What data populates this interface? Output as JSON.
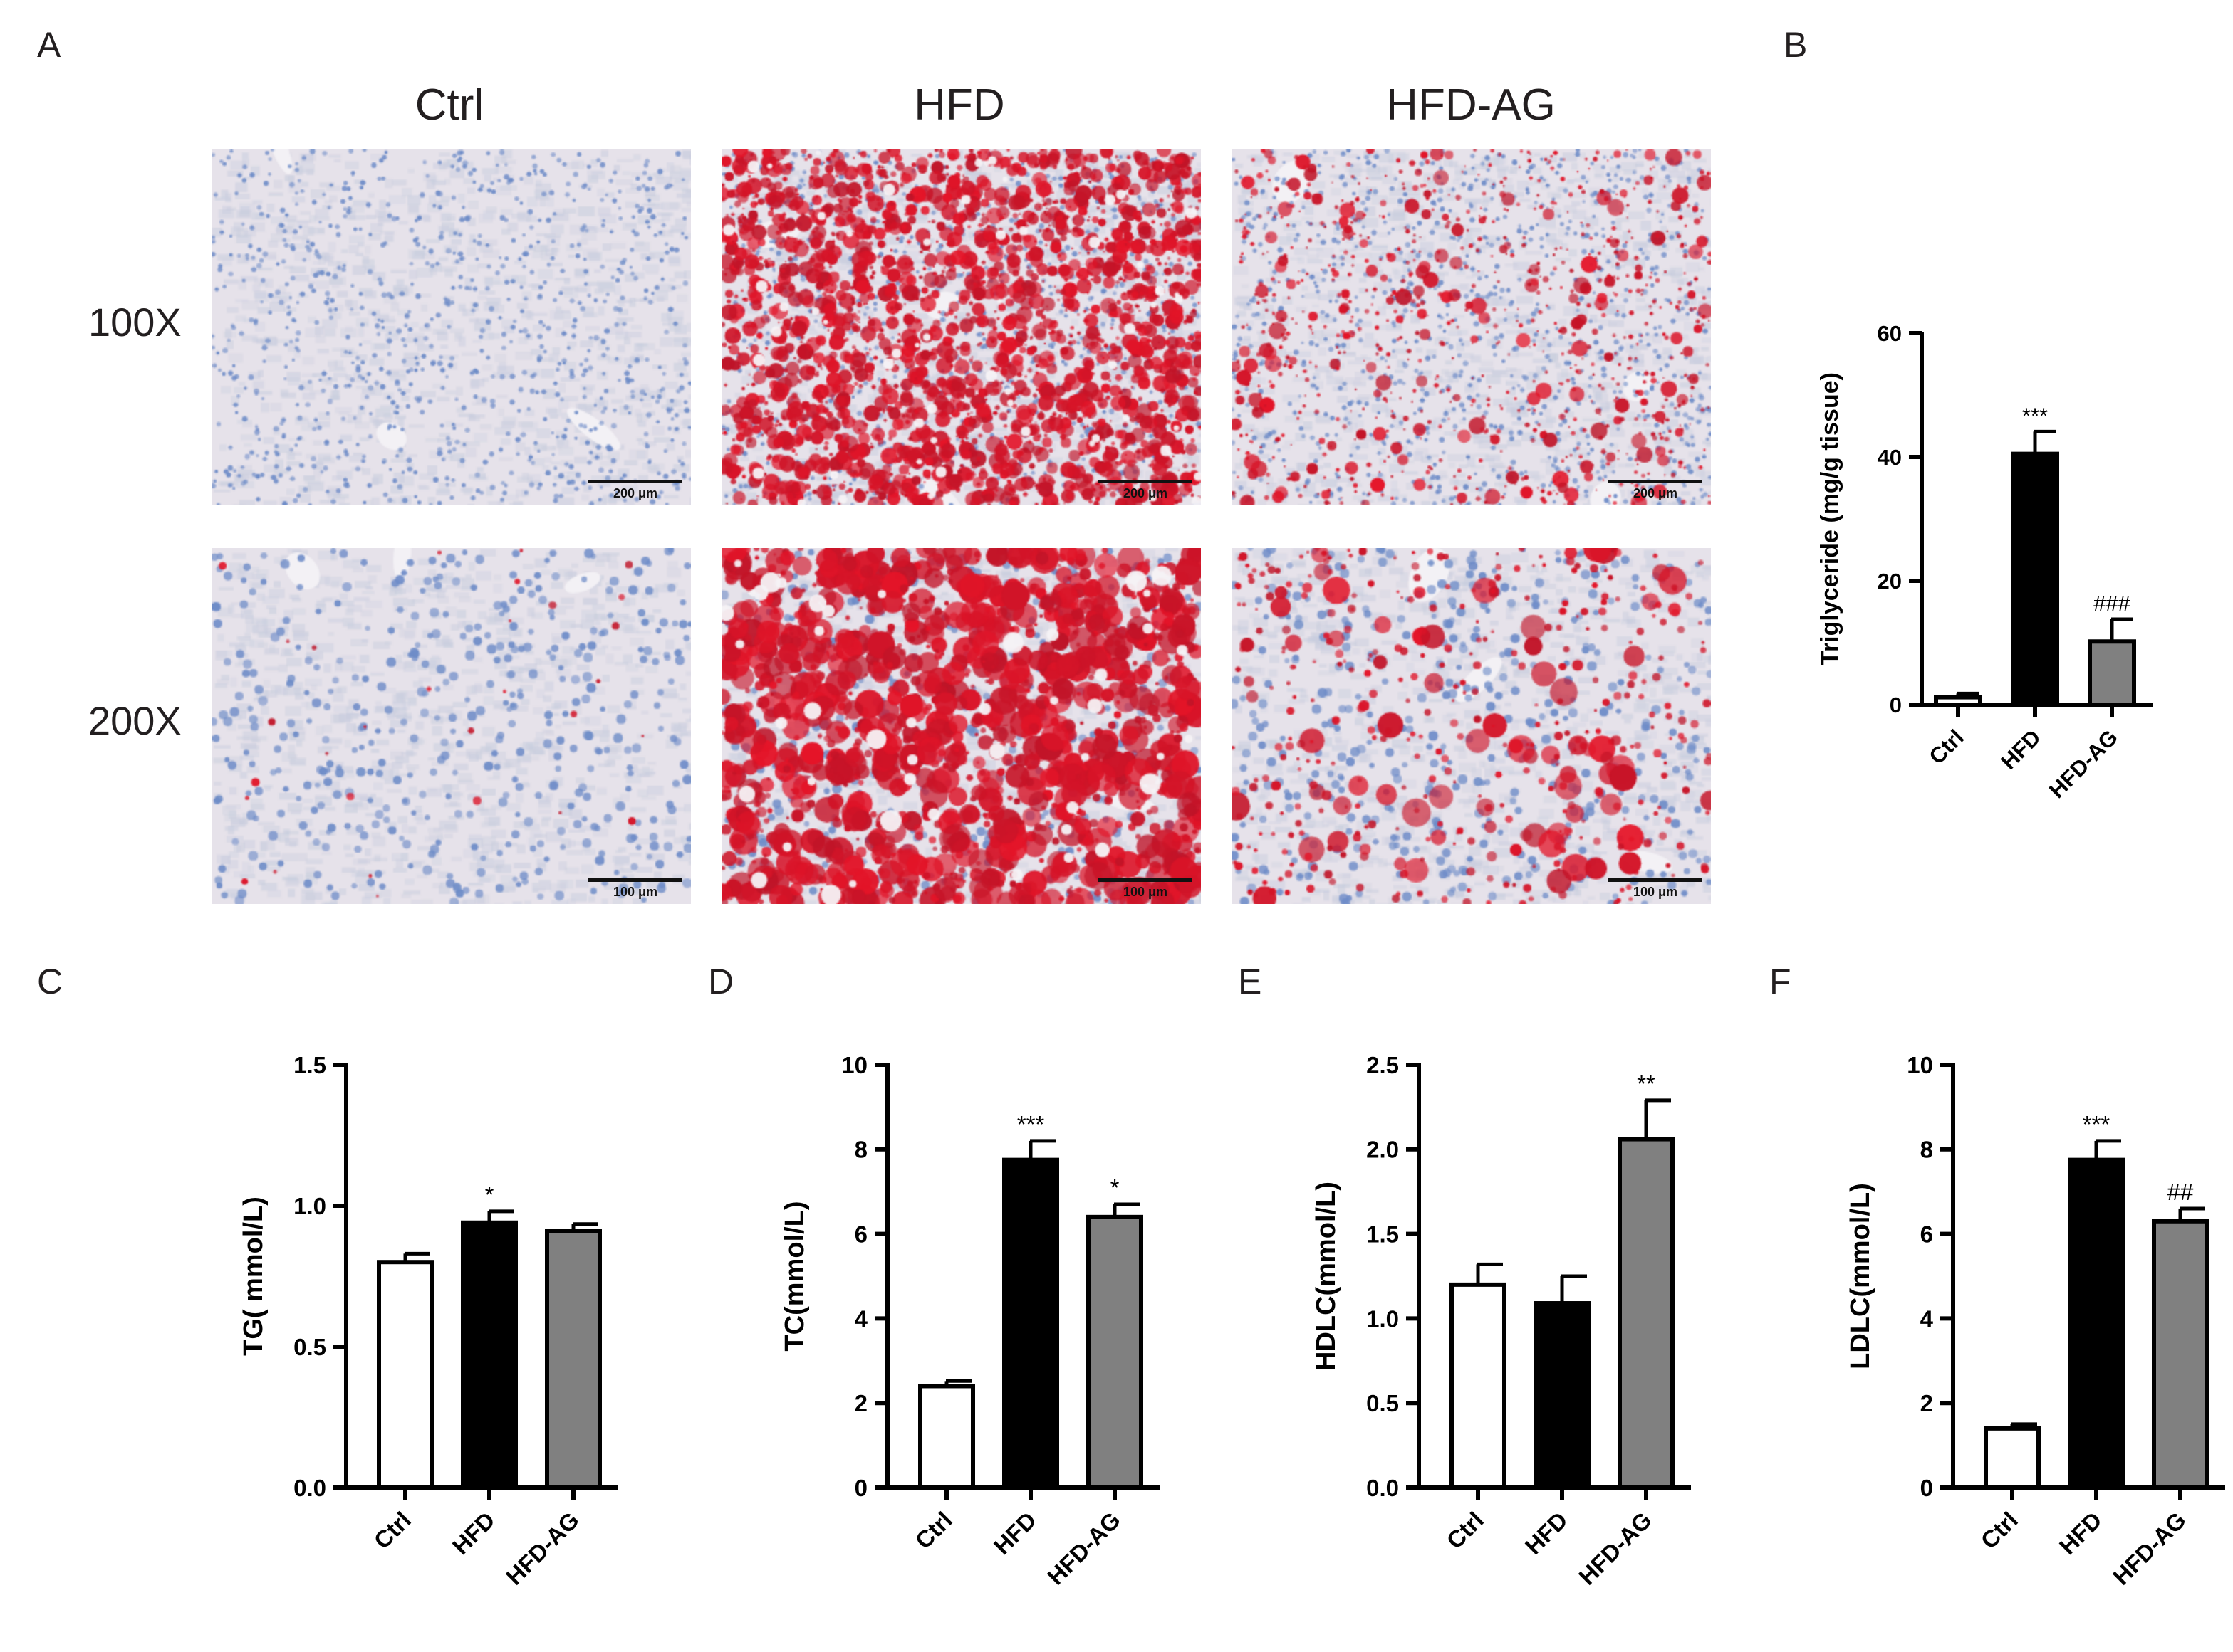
{
  "panel_A": {
    "letter": "A",
    "columns": [
      "Ctrl",
      "HFD",
      "HFD-AG"
    ],
    "rows": [
      "100X",
      "200X"
    ],
    "scale_labels": [
      "200 μm",
      "100 μm"
    ],
    "stain_colors": {
      "background": "#e6e2ea",
      "nuclei": "#7f9ccb",
      "lipid": "#d11c2a"
    },
    "lipid_level": [
      [
        0.0,
        0.92,
        0.35
      ],
      [
        0.02,
        0.95,
        0.3
      ]
    ]
  },
  "chart_data": [
    {
      "id": "B",
      "letter": "B",
      "type": "bar",
      "categories": [
        "Ctrl",
        "HFD",
        "HFD-AG"
      ],
      "values": [
        1.2,
        40.5,
        10.2
      ],
      "errors": [
        0.6,
        3.6,
        3.6
      ],
      "annotations": [
        "",
        "***",
        "###"
      ],
      "bar_colors": [
        "#ffffff",
        "#000000",
        "#808080"
      ],
      "ylabel": "Triglyceride (mg/g tissue)",
      "ylim": [
        0,
        60
      ],
      "yticks": [
        "0",
        "20",
        "40",
        "60"
      ]
    },
    {
      "id": "C",
      "letter": "C",
      "type": "bar",
      "categories": [
        "Ctrl",
        "HFD",
        "HFD-AG"
      ],
      "values": [
        0.8,
        0.94,
        0.91
      ],
      "errors": [
        0.03,
        0.04,
        0.025
      ],
      "annotations": [
        "",
        "*",
        ""
      ],
      "bar_colors": [
        "#ffffff",
        "#000000",
        "#808080"
      ],
      "ylabel": "TG( mmol/L)",
      "ylim": [
        0,
        1.5
      ],
      "yticks": [
        "0.0",
        "0.5",
        "1.0",
        "1.5"
      ]
    },
    {
      "id": "D",
      "letter": "D",
      "type": "bar",
      "categories": [
        "Ctrl",
        "HFD",
        "HFD-AG"
      ],
      "values": [
        2.4,
        7.75,
        6.4
      ],
      "errors": [
        0.12,
        0.45,
        0.3
      ],
      "annotations": [
        "",
        "***",
        "*"
      ],
      "bar_colors": [
        "#ffffff",
        "#000000",
        "#808080"
      ],
      "ylabel": "TC(mmol/L)",
      "ylim": [
        0,
        10
      ],
      "yticks": [
        "0",
        "2",
        "4",
        "6",
        "8",
        "10"
      ]
    },
    {
      "id": "E",
      "letter": "E",
      "type": "bar",
      "categories": [
        "Ctrl",
        "HFD",
        "HFD-AG"
      ],
      "values": [
        1.2,
        1.09,
        2.06
      ],
      "errors": [
        0.12,
        0.16,
        0.23
      ],
      "annotations": [
        "",
        "",
        "**"
      ],
      "bar_colors": [
        "#ffffff",
        "#000000",
        "#808080"
      ],
      "ylabel": "HDLC(mmol/L)",
      "ylim": [
        0,
        2.5
      ],
      "yticks": [
        "0.0",
        "0.5",
        "1.0",
        "1.5",
        "2.0",
        "2.5"
      ]
    },
    {
      "id": "F",
      "letter": "F",
      "type": "bar",
      "categories": [
        "Ctrl",
        "HFD",
        "HFD-AG"
      ],
      "values": [
        1.4,
        7.75,
        6.3
      ],
      "errors": [
        0.1,
        0.45,
        0.3
      ],
      "annotations": [
        "",
        "***",
        "##"
      ],
      "bar_colors": [
        "#ffffff",
        "#000000",
        "#808080"
      ],
      "ylabel": "LDLC(mmol/L)",
      "ylim": [
        0,
        10
      ],
      "yticks": [
        "0",
        "2",
        "4",
        "6",
        "8",
        "10"
      ]
    }
  ]
}
